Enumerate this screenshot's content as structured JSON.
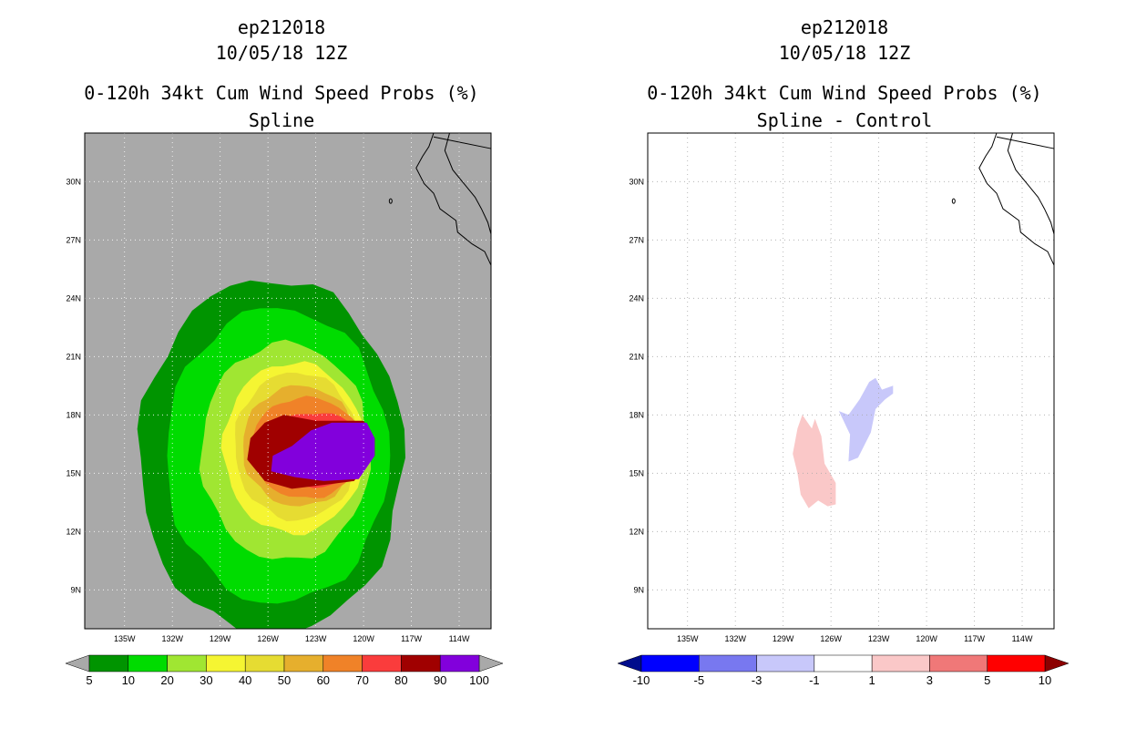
{
  "chart_data": [
    {
      "type": "heatmap",
      "title": [
        "ep212018",
        "10/05/18 12Z",
        "0-120h 34kt Cum Wind Speed Probs (%)",
        "Spline"
      ],
      "lon_range": [
        -137.5,
        -112
      ],
      "lat_range": [
        7,
        32.5
      ],
      "x_ticks": [
        "135W",
        "132W",
        "129W",
        "126W",
        "123W",
        "120W",
        "117W",
        "114W"
      ],
      "y_ticks": [
        "9N",
        "12N",
        "15N",
        "18N",
        "21N",
        "24N",
        "27N",
        "30N"
      ],
      "colorbar": {
        "levels": [
          "5",
          "10",
          "20",
          "30",
          "40",
          "50",
          "60",
          "70",
          "80",
          "90",
          "100"
        ],
        "colors": [
          "#009400",
          "#00dc00",
          "#a0e632",
          "#f5f532",
          "#e6dc32",
          "#e6af2d",
          "#f08228",
          "#fa3c3c",
          "#a00000",
          "#8200dc"
        ],
        "extend": true
      },
      "background": "#a9a9a9",
      "contours": [
        {
          "level": 5,
          "color": "#009400",
          "center_lon": -125.8,
          "center_lat": 15.8,
          "lon_half_width": 8.3,
          "lat_half_height": 9.2
        },
        {
          "level": 10,
          "color": "#00dc00",
          "center_lon": -125.4,
          "center_lat": 15.9,
          "lon_half_width": 7.0,
          "lat_half_height": 7.6
        },
        {
          "level": 20,
          "color": "#a0e632",
          "center_lon": -124.9,
          "center_lat": 16.1,
          "lon_half_width": 5.3,
          "lat_half_height": 5.6
        },
        {
          "level": 30,
          "color": "#f5f532",
          "center_lon": -124.4,
          "center_lat": 16.3,
          "lon_half_width": 4.4,
          "lat_half_height": 4.4
        },
        {
          "level": 40,
          "color": "#e6dc32",
          "center_lon": -124.2,
          "center_lat": 16.4,
          "lon_half_width": 3.9,
          "lat_half_height": 3.8
        },
        {
          "level": 50,
          "color": "#e6af2d",
          "center_lon": -124.0,
          "center_lat": 16.4,
          "lon_half_width": 3.6,
          "lat_half_height": 3.1
        },
        {
          "level": 60,
          "color": "#f08228",
          "center_lon": -123.6,
          "center_lat": 16.3,
          "lon_half_width": 3.5,
          "lat_half_height": 2.6
        },
        {
          "level": 70,
          "color": "#fa3c3c",
          "center_lon": -123.1,
          "center_lat": 16.2,
          "lon_half_width": 3.6,
          "lat_half_height": 1.9
        }
      ]
    },
    {
      "type": "heatmap",
      "title": [
        "ep212018",
        "10/05/18 12Z",
        "0-120h 34kt Cum Wind Speed Probs (%)",
        "Spline - Control"
      ],
      "lon_range": [
        -137.5,
        -112
      ],
      "lat_range": [
        7,
        32.5
      ],
      "x_ticks": [
        "135W",
        "132W",
        "129W",
        "126W",
        "123W",
        "120W",
        "117W",
        "114W"
      ],
      "y_ticks": [
        "9N",
        "12N",
        "15N",
        "18N",
        "21N",
        "24N",
        "27N",
        "30N"
      ],
      "colorbar": {
        "levels": [
          "-10",
          "-5",
          "-3",
          "-1",
          "1",
          "3",
          "5",
          "10"
        ],
        "colors": [
          "#000c8c",
          "#0000ff",
          "#7878f0",
          "#c8c8fa",
          "#ffffff",
          "#fac8c8",
          "#f07878",
          "#ff0000",
          "#8c0000"
        ],
        "extend": true
      },
      "background": "#ffffff",
      "areas": [
        {
          "name": "positive-difference",
          "range": "1 to 3",
          "color": "#fac8c8",
          "approx_lon": [
            -128.5,
            -126.0
          ],
          "approx_lat": [
            13.2,
            18.1
          ]
        },
        {
          "name": "negative-difference",
          "range": "-3 to -1",
          "color": "#c8c8fa",
          "approx_lon": [
            -125.5,
            -122.0
          ],
          "approx_lat": [
            15.5,
            19.9
          ]
        }
      ]
    }
  ]
}
